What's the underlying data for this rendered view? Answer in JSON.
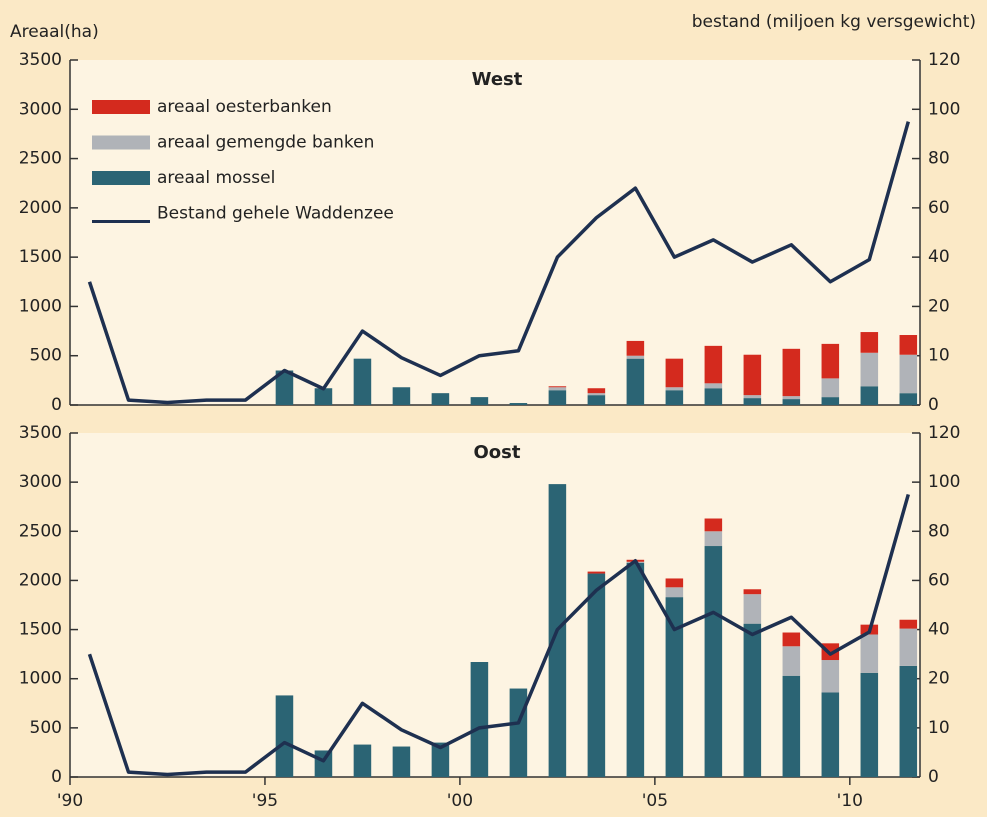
{
  "chart_data": [
    {
      "type": "bar",
      "stacked": true,
      "title": "West",
      "y_label": "Areaal(ha)",
      "y2_label": "bestand (miljoen kg versgewicht)",
      "legend": "upper left",
      "x": [
        1990.5,
        1991.5,
        1992.5,
        1993.5,
        1994.5,
        1995.5,
        1996.5,
        1997.5,
        1998.5,
        1999.5,
        2000.5,
        2001.5,
        2002.5,
        2003.5,
        2004.5,
        2005.5,
        2006.5,
        2007.5,
        2008.5,
        2009.5,
        2010.5,
        2011.5
      ],
      "xlim": [
        1990,
        2011.8
      ],
      "ylim": [
        0,
        3500
      ],
      "yticks": [
        0,
        500,
        1000,
        1500,
        2000,
        2500,
        3000,
        3500
      ],
      "y2lim": [
        0,
        120
      ],
      "y2ticks": [
        0,
        10,
        20,
        40,
        60,
        80,
        100,
        120
      ],
      "series": [
        {
          "name": "areaal oesterbanken",
          "color": "#d42a1e",
          "values": [
            null,
            null,
            null,
            null,
            null,
            0,
            0,
            0,
            0,
            0,
            0,
            0,
            10,
            50,
            150,
            290,
            380,
            410,
            480,
            350,
            210,
            200
          ]
        },
        {
          "name": "areaal gemengde banken",
          "color": "#b0b3b8",
          "values": [
            null,
            null,
            null,
            null,
            null,
            0,
            0,
            0,
            0,
            0,
            0,
            0,
            30,
            20,
            30,
            30,
            50,
            30,
            30,
            190,
            340,
            390
          ]
        },
        {
          "name": "areaal mossel",
          "color": "#2b6474",
          "values": [
            null,
            null,
            null,
            null,
            null,
            350,
            170,
            470,
            180,
            120,
            80,
            20,
            150,
            100,
            470,
            150,
            170,
            70,
            60,
            80,
            190,
            120
          ]
        },
        {
          "name": "Bestand gehele Waddenzee",
          "type": "line",
          "axis": "y2",
          "color": "#1e3050",
          "values": [
            30,
            1,
            0.5,
            1,
            1,
            7,
            3.3,
            15,
            9.6,
            6,
            10,
            11,
            40,
            56,
            68,
            40,
            47,
            38,
            45,
            30,
            39,
            95
          ]
        }
      ]
    },
    {
      "type": "bar",
      "stacked": true,
      "title": "Oost",
      "x": [
        1990.5,
        1991.5,
        1992.5,
        1993.5,
        1994.5,
        1995.5,
        1996.5,
        1997.5,
        1998.5,
        1999.5,
        2000.5,
        2001.5,
        2002.5,
        2003.5,
        2004.5,
        2005.5,
        2006.5,
        2007.5,
        2008.5,
        2009.5,
        2010.5,
        2011.5
      ],
      "xlim": [
        1990,
        2011.8
      ],
      "xticks": [
        {
          "value": 1990,
          "label": "'90"
        },
        {
          "value": 1995,
          "label": "'95"
        },
        {
          "value": 2000,
          "label": "'00"
        },
        {
          "value": 2005,
          "label": "'05"
        },
        {
          "value": 2010,
          "label": "'10"
        }
      ],
      "ylim": [
        0,
        3500
      ],
      "yticks": [
        0,
        500,
        1000,
        1500,
        2000,
        2500,
        3000,
        3500
      ],
      "y2lim": [
        0,
        120
      ],
      "y2ticks": [
        0,
        10,
        20,
        40,
        60,
        80,
        100,
        120
      ],
      "series": [
        {
          "color": "#d42a1e",
          "values": [
            null,
            null,
            null,
            null,
            null,
            0,
            0,
            0,
            0,
            0,
            0,
            0,
            0,
            20,
            20,
            90,
            130,
            50,
            140,
            170,
            100,
            90
          ]
        },
        {
          "color": "#b0b3b8",
          "values": [
            null,
            null,
            null,
            null,
            null,
            0,
            0,
            0,
            0,
            0,
            0,
            0,
            0,
            0,
            10,
            100,
            150,
            300,
            300,
            330,
            390,
            380
          ]
        },
        {
          "color": "#2b6474",
          "values": [
            null,
            null,
            null,
            null,
            null,
            830,
            270,
            330,
            310,
            350,
            1170,
            900,
            2980,
            2070,
            2180,
            1830,
            2350,
            1560,
            1030,
            860,
            1060,
            1130
          ]
        },
        {
          "type": "line",
          "axis": "y2",
          "color": "#1e3050",
          "values": [
            30,
            1,
            0.5,
            1,
            1,
            7,
            3.3,
            15,
            9.6,
            6,
            10,
            11,
            40,
            56,
            68,
            40,
            47,
            38,
            45,
            30,
            39,
            95
          ]
        }
      ]
    }
  ]
}
